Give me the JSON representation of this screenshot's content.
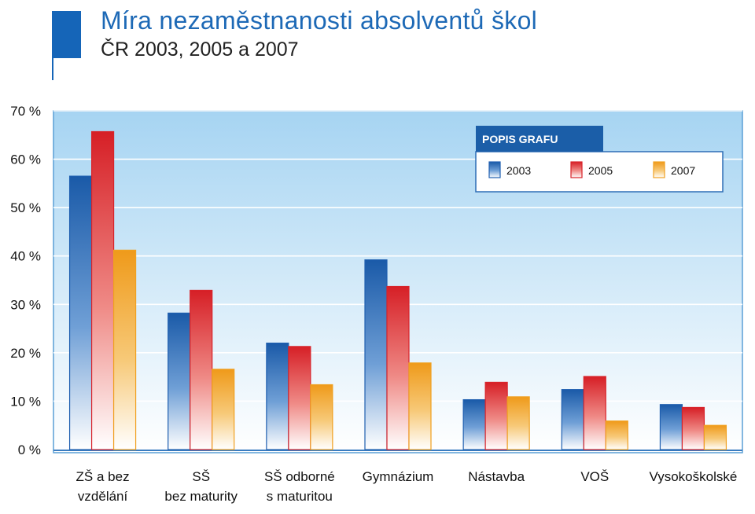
{
  "header": {
    "title": "Míra nezaměstnanosti absolventů škol",
    "subtitle": "ČR 2003, 2005 a 2007"
  },
  "chart_data": {
    "type": "bar",
    "title": "Míra nezaměstnanosti absolventů škol",
    "subtitle": "ČR 2003, 2005 a 2007",
    "categories": [
      [
        "ZŠ a bez",
        "vzdělání"
      ],
      [
        "SŠ",
        "bez maturity"
      ],
      [
        "SŠ odborné",
        "s maturitou"
      ],
      [
        "Gymnázium"
      ],
      [
        "Nástavba"
      ],
      [
        "VOŠ"
      ],
      [
        "Vysokoškolské"
      ]
    ],
    "series": [
      {
        "name": "2003",
        "color": "#1f5fb0",
        "values": [
          56.5,
          28.2,
          22.0,
          39.2,
          10.3,
          12.4,
          9.3
        ]
      },
      {
        "name": "2005",
        "color": "#d8232a",
        "values": [
          65.7,
          32.9,
          21.3,
          33.7,
          13.9,
          15.1,
          8.7
        ]
      },
      {
        "name": "2007",
        "color": "#f0a020",
        "values": [
          41.2,
          16.6,
          13.4,
          17.9,
          10.9,
          5.9,
          5.0
        ]
      }
    ],
    "ylim": [
      0,
      70
    ],
    "yticks": [
      "0 %",
      "10 %",
      "20 %",
      "30 %",
      "40 %",
      "50 %",
      "60 %",
      "70 %"
    ],
    "legend": {
      "title": "POPIS GRAFU",
      "placement": "top-right"
    },
    "grid": true
  }
}
